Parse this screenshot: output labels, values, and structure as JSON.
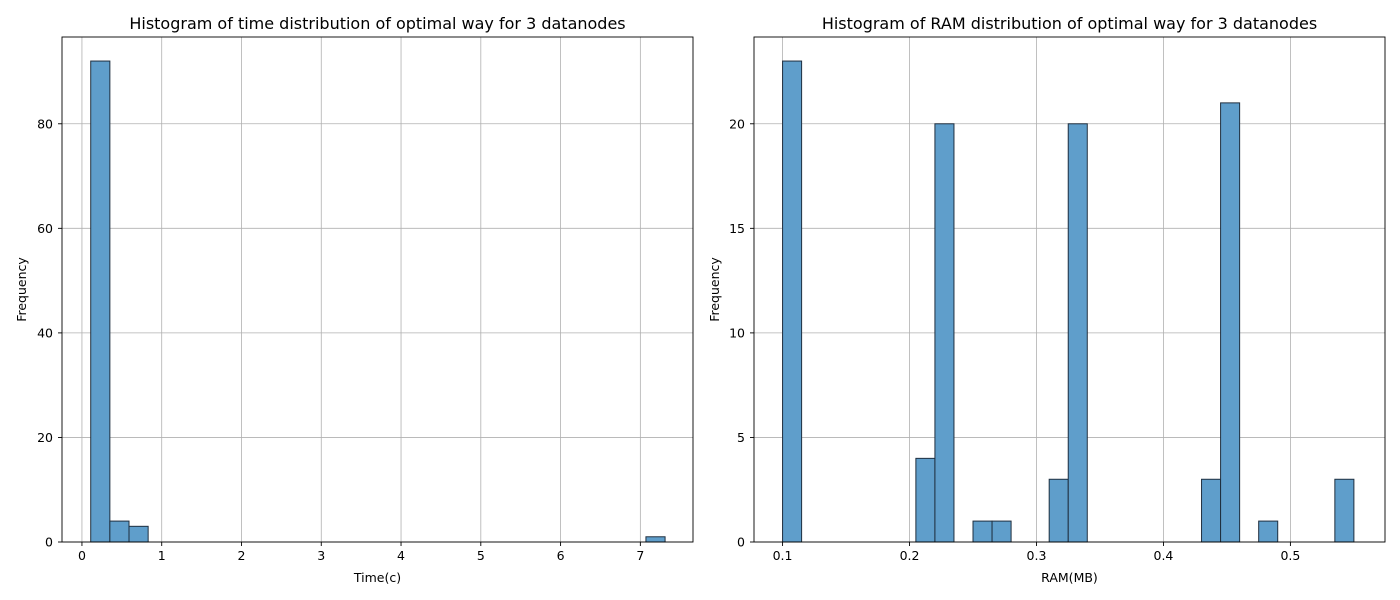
{
  "chart_data": [
    {
      "type": "bar",
      "histogram": true,
      "title": "Histogram of time distribution of optimal way for 3 datanodes",
      "xlabel": "Time(c)",
      "ylabel": "Frequency",
      "xlim": [
        -0.25,
        7.66
      ],
      "ylim": [
        0,
        96.6
      ],
      "xticks": [
        0,
        1,
        2,
        3,
        4,
        5,
        6,
        7
      ],
      "xtick_labels": [
        "0",
        "1",
        "2",
        "3",
        "4",
        "5",
        "6",
        "7"
      ],
      "yticks": [
        0,
        20,
        40,
        60,
        80
      ],
      "ytick_labels": [
        "0",
        "20",
        "40",
        "60",
        "80"
      ],
      "grid": true,
      "bar_color": "#5f9ecb",
      "edge_color": "#1f2f3f",
      "bins": [
        {
          "x0": 0.11,
          "x1": 0.35,
          "count": 92
        },
        {
          "x0": 0.35,
          "x1": 0.59,
          "count": 4
        },
        {
          "x0": 0.59,
          "x1": 0.83,
          "count": 3
        },
        {
          "x0": 7.07,
          "x1": 7.31,
          "count": 1
        }
      ]
    },
    {
      "type": "bar",
      "histogram": true,
      "title": "Histogram of RAM distribution of optimal way for 3 datanodes",
      "xlabel": "RAM(MB)",
      "ylabel": "Frequency",
      "xlim": [
        0.0775,
        0.5745
      ],
      "ylim": [
        0,
        24.15
      ],
      "xticks": [
        0.1,
        0.2,
        0.3,
        0.4,
        0.5
      ],
      "xtick_labels": [
        "0.1",
        "0.2",
        "0.3",
        "0.4",
        "0.5"
      ],
      "yticks": [
        0,
        5,
        10,
        15,
        20
      ],
      "ytick_labels": [
        "0",
        "5",
        "10",
        "15",
        "20"
      ],
      "grid": true,
      "bar_color": "#5f9ecb",
      "edge_color": "#1f2f3f",
      "bins": [
        {
          "x0": 0.1,
          "x1": 0.115,
          "count": 23
        },
        {
          "x0": 0.205,
          "x1": 0.22,
          "count": 4
        },
        {
          "x0": 0.22,
          "x1": 0.235,
          "count": 20
        },
        {
          "x0": 0.25,
          "x1": 0.265,
          "count": 1
        },
        {
          "x0": 0.265,
          "x1": 0.28,
          "count": 1
        },
        {
          "x0": 0.31,
          "x1": 0.325,
          "count": 3
        },
        {
          "x0": 0.325,
          "x1": 0.34,
          "count": 20
        },
        {
          "x0": 0.43,
          "x1": 0.445,
          "count": 3
        },
        {
          "x0": 0.445,
          "x1": 0.46,
          "count": 21
        },
        {
          "x0": 0.475,
          "x1": 0.49,
          "count": 1
        },
        {
          "x0": 0.535,
          "x1": 0.55,
          "count": 3
        }
      ]
    }
  ]
}
